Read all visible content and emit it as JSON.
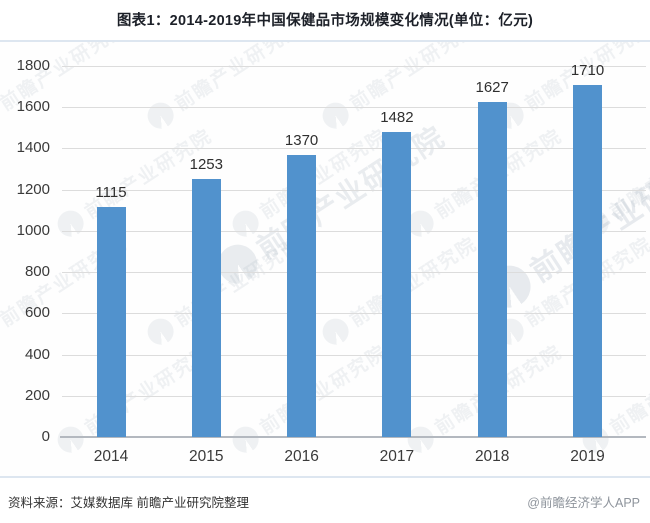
{
  "page": {
    "title": "图表1：2014-2019年中国保健品市场规模变化情况(单位：亿元)"
  },
  "chart_data": {
    "type": "bar",
    "title": "图表1：2014-2019年中国保健品市场规模变化情况(单位：亿元)",
    "unit": "亿元",
    "categories": [
      "2014",
      "2015",
      "2016",
      "2017",
      "2018",
      "2019"
    ],
    "values": [
      1115,
      1253,
      1370,
      1482,
      1627,
      1710
    ],
    "xlabel": "",
    "ylabel": "",
    "ylim": [
      0,
      1800
    ],
    "ytick_step": 200,
    "yticks": [
      0,
      200,
      400,
      600,
      800,
      1000,
      1200,
      1400,
      1600,
      1800
    ],
    "grid": true,
    "legend": false,
    "data_labels": true,
    "bar_color": "#5192cd"
  },
  "footer": {
    "source": "资料来源：艾媒数据库 前瞻产业研究院整理",
    "credit": "@前瞻经济学人APP"
  },
  "watermark": {
    "text": "前瞻产业研究院"
  },
  "colors": {
    "bar": "#5192cd",
    "title_text": "#1c2028",
    "axis_text": "#3a3a3a",
    "value_text": "#2f2f2f",
    "gridline": "#dcdcdc",
    "axis_line": "#b3b8bf",
    "divider": "#dde6f0",
    "source_text": "#333333",
    "credit_text": "#8e949c",
    "watermark": "#8fa0b0"
  }
}
